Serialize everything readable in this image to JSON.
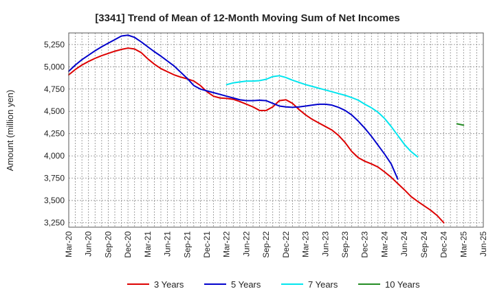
{
  "chart_data": {
    "type": "line",
    "title": "[3341]  Trend of Mean of 12-Month Moving Sum of Net Incomes",
    "xlabel": "",
    "ylabel": "Amount (million yen)",
    "x_ticks": [
      "Mar-20",
      "Jun-20",
      "Sep-20",
      "Dec-20",
      "Mar-21",
      "Jun-21",
      "Sep-21",
      "Dec-21",
      "Mar-22",
      "Jun-22",
      "Sep-22",
      "Dec-22",
      "Mar-23",
      "Jun-23",
      "Sep-23",
      "Dec-23",
      "Mar-24",
      "Jun-24",
      "Sep-24",
      "Dec-24",
      "Mar-25",
      "Jun-25"
    ],
    "y_ticks": [
      3250,
      3500,
      3750,
      4000,
      4250,
      4500,
      4750,
      5000,
      5250
    ],
    "y_tick_labels": [
      "3,250",
      "3,500",
      "3,750",
      "4,000",
      "4,250",
      "4,500",
      "4,750",
      "5,000",
      "5,250"
    ],
    "ylim": [
      3200,
      5380
    ],
    "grid": true,
    "legend_position": "bottom",
    "series": [
      {
        "name": "3 Years",
        "color": "#dd0000",
        "start": "Mar-20",
        "values": [
          4910,
          4970,
          5020,
          5060,
          5095,
          5125,
          5150,
          5175,
          5195,
          5210,
          5200,
          5160,
          5090,
          5030,
          4980,
          4945,
          4910,
          4885,
          4865,
          4840,
          4790,
          4720,
          4670,
          4650,
          4645,
          4635,
          4610,
          4580,
          4550,
          4510,
          4510,
          4550,
          4620,
          4630,
          4590,
          4520,
          4460,
          4410,
          4370,
          4330,
          4290,
          4230,
          4150,
          4050,
          3980,
          3940,
          3910,
          3875,
          3820,
          3760,
          3690,
          3620,
          3545,
          3490,
          3440,
          3390,
          3330,
          3250
        ]
      },
      {
        "name": "5 Years",
        "color": "#0000cc",
        "start": "Mar-20",
        "values": [
          4950,
          5020,
          5080,
          5130,
          5180,
          5225,
          5265,
          5305,
          5345,
          5355,
          5330,
          5280,
          5225,
          5170,
          5120,
          5065,
          5010,
          4940,
          4870,
          4790,
          4750,
          4730,
          4710,
          4690,
          4670,
          4650,
          4630,
          4620,
          4620,
          4625,
          4620,
          4590,
          4560,
          4550,
          4545,
          4550,
          4560,
          4570,
          4580,
          4580,
          4570,
          4545,
          4510,
          4460,
          4390,
          4310,
          4220,
          4120,
          4020,
          3910,
          3740
        ]
      },
      {
        "name": "7 Years",
        "color": "#00e5ee",
        "start": "Mar-22",
        "values": [
          4800,
          4820,
          4830,
          4840,
          4840,
          4845,
          4860,
          4890,
          4900,
          4880,
          4850,
          4825,
          4800,
          4780,
          4760,
          4740,
          4720,
          4700,
          4680,
          4655,
          4625,
          4580,
          4540,
          4490,
          4420,
          4330,
          4230,
          4130,
          4050,
          3990
        ]
      },
      {
        "name": "10 Years",
        "color": "#228b22",
        "start": "Feb-25",
        "values": [
          4360,
          4345
        ]
      }
    ]
  }
}
